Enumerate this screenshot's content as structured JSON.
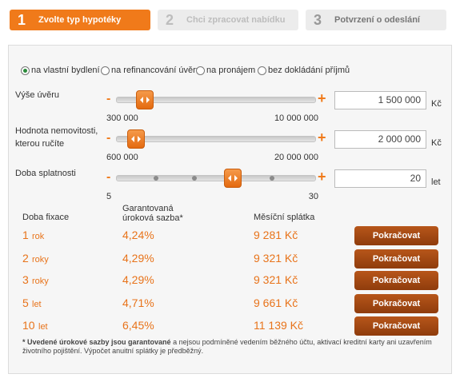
{
  "steps": [
    {
      "number": "1",
      "label": "Zvolte typ hypotéky"
    },
    {
      "number": "2",
      "label": "Chci zpracovat nabídku"
    },
    {
      "number": "3",
      "label": "Potvrzení o odeslání"
    }
  ],
  "purposes": [
    "na vlastní bydlení",
    "na refinancování úvěru",
    "na pronájem",
    "bez dokládání příjmů"
  ],
  "sliders": [
    {
      "label": [
        "Výše úvěru"
      ],
      "min_label": "300 000",
      "max_label": "10 000 000",
      "value": "1 500 000",
      "unit": "Kč"
    },
    {
      "label": [
        "Hodnota nemovitosti,",
        "kterou ručíte"
      ],
      "min_label": "600 000",
      "max_label": "20 000 000",
      "value": "2 000 000",
      "unit": "Kč"
    },
    {
      "label": [
        "Doba splatnosti"
      ],
      "min_label": "5",
      "max_label": "30",
      "value": "20",
      "unit": "let"
    }
  ],
  "table": {
    "headers": {
      "term": "Doba fixace",
      "rate": [
        "Garantovaná",
        "úroková sazba*"
      ],
      "payment": "Měsíční splátka"
    },
    "rows": [
      {
        "term": "1",
        "unit": "rok",
        "rate": "4,24%",
        "payment": "9 281 Kč",
        "button": "Pokračovat"
      },
      {
        "term": "2",
        "unit": "roky",
        "rate": "4,29%",
        "payment": "9 321 Kč",
        "button": "Pokračovat"
      },
      {
        "term": "3",
        "unit": "roky",
        "rate": "4,29%",
        "payment": "9 321 Kč",
        "button": "Pokračovat"
      },
      {
        "term": "5",
        "unit": "let",
        "rate": "4,71%",
        "payment": "9 661 Kč",
        "button": "Pokračovat"
      },
      {
        "term": "10",
        "unit": "let",
        "rate": "6,45%",
        "payment": "11 139 Kč",
        "button": "Pokračovat"
      }
    ]
  },
  "footnote": {
    "bold": "* Uvedené úrokové sazby jsou garantované",
    "text": "a nejsou podmíněné vedením běžného účtu, aktivací kreditní karty ani uzavřením životního pojištění. Výpočet anuitní splátky je předběžný."
  }
}
